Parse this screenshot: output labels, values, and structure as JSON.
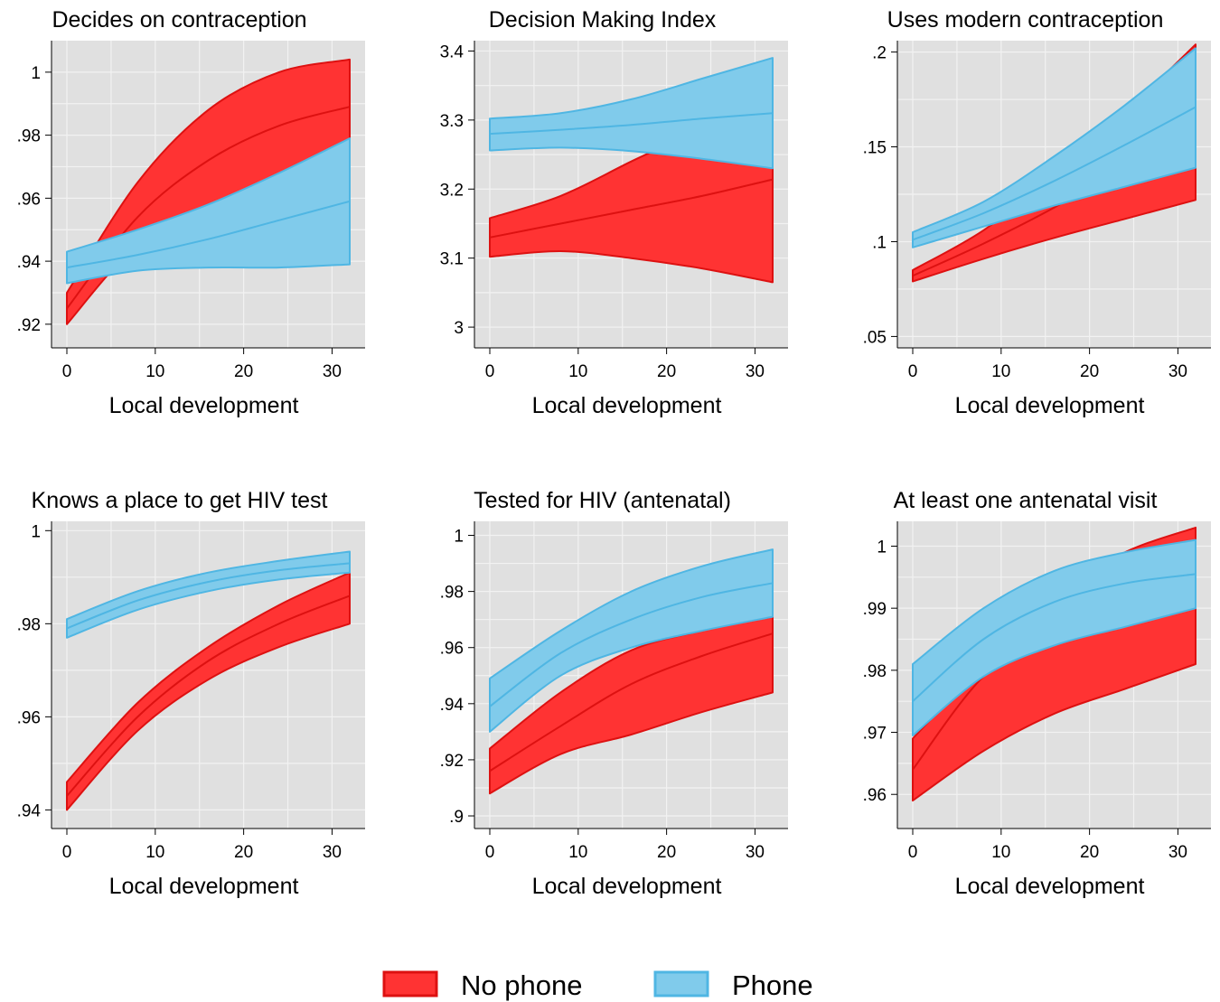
{
  "legend": [
    {
      "label": "No phone",
      "fill": "#ff3333",
      "stroke": "#dd1111"
    },
    {
      "label": "Phone",
      "fill": "#80cbeb",
      "stroke": "#4fb6e3"
    }
  ],
  "colors": {
    "plot_background": "#e0e0e0",
    "gridline": "#f2f2f2"
  },
  "chart_data": [
    {
      "type": "area",
      "title": "Decides on contraception",
      "xlabel": "Local development",
      "xlim": [
        0,
        32
      ],
      "ylim": [
        0.9125,
        1.01
      ],
      "xticks": [
        0,
        10,
        20,
        30
      ],
      "xtick_labels": [
        "0",
        "10",
        "20",
        "30"
      ],
      "yticks": [
        0.92,
        0.94,
        0.96,
        0.98,
        1
      ],
      "ytick_labels": [
        ".92",
        ".94",
        ".96",
        ".98",
        "1"
      ],
      "x": [
        0,
        8,
        16,
        24,
        32
      ],
      "series": [
        {
          "name": "No phone",
          "mid": [
            0.925,
            0.954,
            0.972,
            0.983,
            0.989
          ],
          "lower": [
            0.92,
            0.945,
            0.954,
            0.957,
            0.958
          ],
          "upper": [
            0.93,
            0.965,
            0.988,
            1.0,
            1.004
          ]
        },
        {
          "name": "Phone",
          "mid": [
            0.938,
            0.942,
            0.947,
            0.953,
            0.959
          ],
          "lower": [
            0.933,
            0.937,
            0.938,
            0.938,
            0.939
          ],
          "upper": [
            0.943,
            0.95,
            0.958,
            0.968,
            0.979
          ]
        }
      ]
    },
    {
      "type": "area",
      "title": "Decision Making Index",
      "xlabel": "Local development",
      "xlim": [
        0,
        32
      ],
      "ylim": [
        2.97,
        3.415
      ],
      "xticks": [
        0,
        10,
        20,
        30
      ],
      "xtick_labels": [
        "0",
        "10",
        "20",
        "30"
      ],
      "yticks": [
        3,
        3.1,
        3.2,
        3.3,
        3.4
      ],
      "ytick_labels": [
        "3",
        "3.1",
        "3.2",
        "3.3",
        "3.4"
      ],
      "x": [
        0,
        8,
        16,
        24,
        32
      ],
      "series": [
        {
          "name": "No phone",
          "mid": [
            3.13,
            3.15,
            3.17,
            3.19,
            3.214
          ],
          "lower": [
            3.102,
            3.11,
            3.1,
            3.085,
            3.065
          ],
          "upper": [
            3.158,
            3.19,
            3.24,
            3.29,
            3.36
          ]
        },
        {
          "name": "Phone",
          "mid": [
            3.28,
            3.286,
            3.293,
            3.302,
            3.31
          ],
          "lower": [
            3.256,
            3.26,
            3.255,
            3.244,
            3.23
          ],
          "upper": [
            3.302,
            3.31,
            3.33,
            3.36,
            3.39
          ]
        }
      ]
    },
    {
      "type": "area",
      "title": "Uses modern contraception",
      "xlabel": "Local development",
      "xlim": [
        0,
        32
      ],
      "ylim": [
        0.044,
        0.206
      ],
      "xticks": [
        0,
        10,
        20,
        30
      ],
      "xtick_labels": [
        "0",
        "10",
        "20",
        "30"
      ],
      "yticks": [
        0.05,
        0.1,
        0.15,
        0.2
      ],
      "ytick_labels": [
        ".05",
        ".1",
        ".15",
        ".2"
      ],
      "x": [
        0,
        8,
        16,
        24,
        32
      ],
      "series": [
        {
          "name": "No phone",
          "mid": [
            0.082,
            0.099,
            0.118,
            0.14,
            0.163
          ],
          "lower": [
            0.079,
            0.091,
            0.102,
            0.112,
            0.122
          ],
          "upper": [
            0.085,
            0.106,
            0.135,
            0.168,
            0.204
          ]
        },
        {
          "name": "Phone",
          "mid": [
            0.101,
            0.115,
            0.132,
            0.151,
            0.171
          ],
          "lower": [
            0.097,
            0.108,
            0.119,
            0.129,
            0.139
          ],
          "upper": [
            0.105,
            0.121,
            0.145,
            0.172,
            0.202
          ]
        }
      ]
    },
    {
      "type": "area",
      "title": "Knows a place to get HIV test",
      "xlabel": "Local development",
      "xlim": [
        0,
        32
      ],
      "ylim": [
        0.936,
        1.002
      ],
      "xticks": [
        0,
        10,
        20,
        30
      ],
      "xtick_labels": [
        "0",
        "10",
        "20",
        "30"
      ],
      "yticks": [
        0.94,
        0.96,
        0.98,
        1
      ],
      "ytick_labels": [
        ".94",
        ".96",
        ".98",
        "1"
      ],
      "x": [
        0,
        8,
        16,
        24,
        32
      ],
      "series": [
        {
          "name": "No phone",
          "mid": [
            0.943,
            0.96,
            0.972,
            0.98,
            0.986
          ],
          "lower": [
            0.94,
            0.957,
            0.968,
            0.975,
            0.98
          ],
          "upper": [
            0.946,
            0.963,
            0.975,
            0.984,
            0.991
          ]
        },
        {
          "name": "Phone",
          "mid": [
            0.979,
            0.985,
            0.989,
            0.9915,
            0.993
          ],
          "lower": [
            0.977,
            0.983,
            0.987,
            0.9895,
            0.991
          ],
          "upper": [
            0.981,
            0.987,
            0.991,
            0.9935,
            0.9955
          ]
        }
      ]
    },
    {
      "type": "area",
      "title": "Tested for HIV (antenatal)",
      "xlabel": "Local development",
      "xlim": [
        0,
        32
      ],
      "ylim": [
        0.8955,
        1.005
      ],
      "xticks": [
        0,
        10,
        20,
        30
      ],
      "xtick_labels": [
        "0",
        "10",
        "20",
        "30"
      ],
      "yticks": [
        0.9,
        0.92,
        0.94,
        0.96,
        0.98,
        1
      ],
      "ytick_labels": [
        ".9",
        ".92",
        ".94",
        ".96",
        ".98",
        "1"
      ],
      "x": [
        0,
        8,
        16,
        24,
        32
      ],
      "series": [
        {
          "name": "No phone",
          "mid": [
            0.916,
            0.932,
            0.947,
            0.957,
            0.965
          ],
          "lower": [
            0.908,
            0.922,
            0.929,
            0.937,
            0.944
          ],
          "upper": [
            0.924,
            0.944,
            0.959,
            0.966,
            0.971
          ]
        },
        {
          "name": "Phone",
          "mid": [
            0.939,
            0.958,
            0.97,
            0.978,
            0.983
          ],
          "lower": [
            0.93,
            0.95,
            0.96,
            0.966,
            0.971
          ],
          "upper": [
            0.949,
            0.966,
            0.98,
            0.989,
            0.995
          ]
        }
      ]
    },
    {
      "type": "area",
      "title": "At least one antenatal visit",
      "xlabel": "Local development",
      "xlim": [
        0,
        32
      ],
      "ylim": [
        0.9545,
        1.004
      ],
      "xticks": [
        0,
        10,
        20,
        30
      ],
      "xtick_labels": [
        "0",
        "10",
        "20",
        "30"
      ],
      "yticks": [
        0.96,
        0.97,
        0.98,
        0.99,
        1
      ],
      "ytick_labels": [
        ".96",
        ".97",
        ".98",
        ".99",
        "1"
      ],
      "x": [
        0,
        8,
        16,
        24,
        32
      ],
      "series": [
        {
          "name": "No phone",
          "mid": [
            0.964,
            0.979,
            0.986,
            0.99,
            0.992
          ],
          "lower": [
            0.959,
            0.967,
            0.973,
            0.977,
            0.981
          ],
          "upper": [
            0.969,
            0.981,
            0.992,
            0.999,
            1.003
          ]
        },
        {
          "name": "Phone",
          "mid": [
            0.975,
            0.985,
            0.991,
            0.994,
            0.9955
          ],
          "lower": [
            0.9695,
            0.979,
            0.984,
            0.987,
            0.99
          ],
          "upper": [
            0.981,
            0.99,
            0.996,
            0.999,
            1.001
          ]
        }
      ]
    }
  ]
}
